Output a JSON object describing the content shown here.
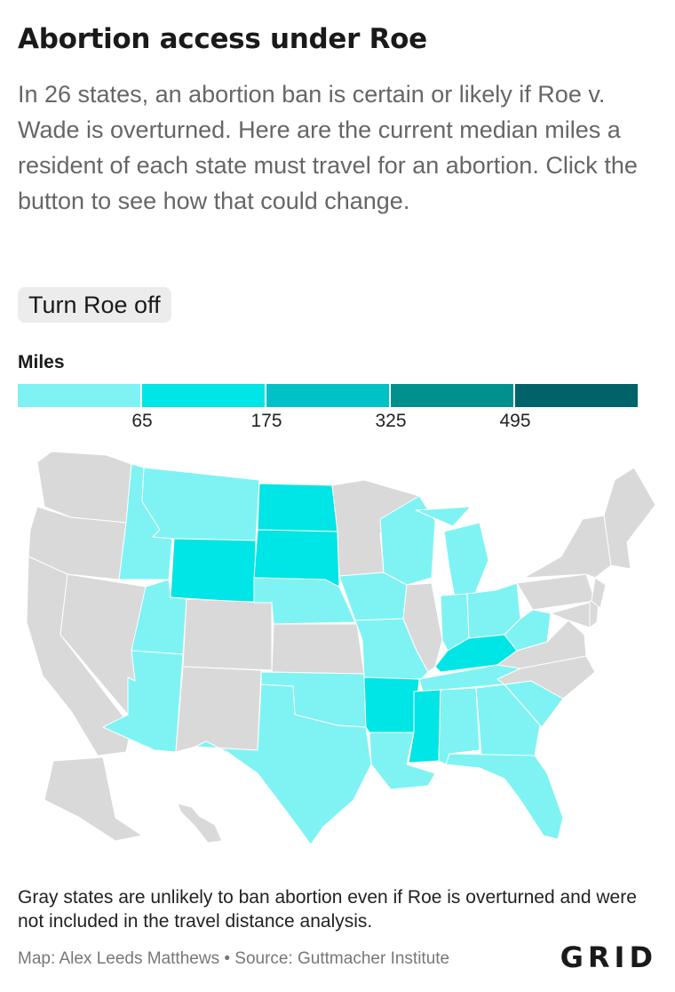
{
  "header": {
    "title": "Abortion access under Roe",
    "subtitle": "In 26 states, an abortion ban is certain or likely if Roe v. Wade is overturned. Here are the current median miles a resident of each state must travel for an abortion. Click the button to see how that could change."
  },
  "controls": {
    "toggle_label": "Turn Roe off"
  },
  "legend": {
    "title": "Miles",
    "ticks": [
      "65",
      "175",
      "325",
      "495"
    ],
    "colors": [
      "#7ff3f3",
      "#00e5e5",
      "#00c2c6",
      "#00918f",
      "#00636a"
    ]
  },
  "map": {
    "no_data_color": "#d9d9d9",
    "states": [
      {
        "id": "WA",
        "bin": -1
      },
      {
        "id": "OR",
        "bin": -1
      },
      {
        "id": "CA",
        "bin": -1
      },
      {
        "id": "NV",
        "bin": -1
      },
      {
        "id": "ID",
        "bin": 0
      },
      {
        "id": "MT",
        "bin": 0
      },
      {
        "id": "WY",
        "bin": 1
      },
      {
        "id": "UT",
        "bin": 0
      },
      {
        "id": "AZ",
        "bin": 0
      },
      {
        "id": "CO",
        "bin": -1
      },
      {
        "id": "NM",
        "bin": -1
      },
      {
        "id": "ND",
        "bin": 1
      },
      {
        "id": "SD",
        "bin": 1
      },
      {
        "id": "NE",
        "bin": 0
      },
      {
        "id": "KS",
        "bin": -1
      },
      {
        "id": "OK",
        "bin": 0
      },
      {
        "id": "TX",
        "bin": 0
      },
      {
        "id": "MN",
        "bin": -1
      },
      {
        "id": "IA",
        "bin": 0
      },
      {
        "id": "MO",
        "bin": 0
      },
      {
        "id": "AR",
        "bin": 1
      },
      {
        "id": "LA",
        "bin": 0
      },
      {
        "id": "WI",
        "bin": 0
      },
      {
        "id": "IL",
        "bin": -1
      },
      {
        "id": "MI",
        "bin": 0
      },
      {
        "id": "IN",
        "bin": 0
      },
      {
        "id": "OH",
        "bin": 0
      },
      {
        "id": "KY",
        "bin": 1
      },
      {
        "id": "TN",
        "bin": 0
      },
      {
        "id": "MS",
        "bin": 1
      },
      {
        "id": "AL",
        "bin": 0
      },
      {
        "id": "GA",
        "bin": 0
      },
      {
        "id": "FL",
        "bin": 0
      },
      {
        "id": "SC",
        "bin": 0
      },
      {
        "id": "NC",
        "bin": -1
      },
      {
        "id": "VA",
        "bin": -1
      },
      {
        "id": "WV",
        "bin": 0
      },
      {
        "id": "PA",
        "bin": -1
      },
      {
        "id": "NY",
        "bin": -1
      },
      {
        "id": "NE-states",
        "bin": -1
      },
      {
        "id": "MD",
        "bin": -1
      },
      {
        "id": "DE",
        "bin": -1
      },
      {
        "id": "NJ",
        "bin": -1
      },
      {
        "id": "AK",
        "bin": -1
      },
      {
        "id": "HI",
        "bin": -1
      }
    ]
  },
  "footer": {
    "note": "Gray states are unlikely to ban abortion even if Roe is overturned and were not included in the travel distance analysis.",
    "credit": "Map: Alex Leeds Matthews • Source: Guttmacher Institute",
    "logo": "GRID"
  }
}
